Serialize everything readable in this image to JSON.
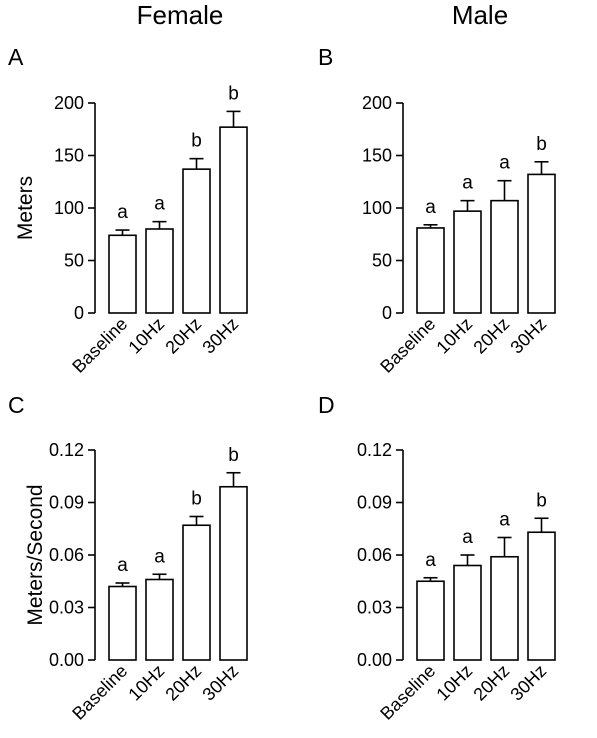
{
  "figure": {
    "column_titles": [
      "Female",
      "Male"
    ]
  },
  "chart_data": [
    {
      "panel": "A",
      "type": "bar",
      "categories": [
        "Baseline",
        "10Hz",
        "20Hz",
        "30Hz"
      ],
      "values": [
        74,
        80,
        137,
        177
      ],
      "errors": [
        5,
        7,
        10,
        15
      ],
      "significance": [
        "a",
        "a",
        "b",
        "b"
      ],
      "ylabel": "Meters",
      "ylim": [
        0,
        200
      ],
      "yticks": [
        0,
        50,
        100,
        150,
        200
      ],
      "ytick_labels": [
        "0",
        "50",
        "100",
        "150",
        "200"
      ]
    },
    {
      "panel": "B",
      "type": "bar",
      "categories": [
        "Baseline",
        "10Hz",
        "20Hz",
        "30Hz"
      ],
      "values": [
        81,
        97,
        107,
        132
      ],
      "errors": [
        3,
        10,
        19,
        12
      ],
      "significance": [
        "a",
        "a",
        "a",
        "b"
      ],
      "ylabel": "",
      "ylim": [
        0,
        200
      ],
      "yticks": [
        0,
        50,
        100,
        150,
        200
      ],
      "ytick_labels": [
        "0",
        "50",
        "100",
        "150",
        "200"
      ]
    },
    {
      "panel": "C",
      "type": "bar",
      "categories": [
        "Baseline",
        "10Hz",
        "20Hz",
        "30Hz"
      ],
      "values": [
        0.042,
        0.046,
        0.077,
        0.099
      ],
      "errors": [
        0.002,
        0.003,
        0.005,
        0.008
      ],
      "significance": [
        "a",
        "a",
        "b",
        "b"
      ],
      "ylabel": "Meters/Second",
      "ylim": [
        0,
        0.12
      ],
      "yticks": [
        0,
        0.03,
        0.06,
        0.09,
        0.12
      ],
      "ytick_labels": [
        "0.00",
        "0.03",
        "0.06",
        "0.09",
        "0.12"
      ]
    },
    {
      "panel": "D",
      "type": "bar",
      "categories": [
        "Baseline",
        "10Hz",
        "20Hz",
        "30Hz"
      ],
      "values": [
        0.045,
        0.054,
        0.059,
        0.073
      ],
      "errors": [
        0.002,
        0.006,
        0.011,
        0.008
      ],
      "significance": [
        "a",
        "a",
        "a",
        "b"
      ],
      "ylabel": "",
      "ylim": [
        0,
        0.12
      ],
      "yticks": [
        0,
        0.03,
        0.06,
        0.09,
        0.12
      ],
      "ytick_labels": [
        "0.00",
        "0.03",
        "0.06",
        "0.09",
        "0.12"
      ]
    }
  ]
}
